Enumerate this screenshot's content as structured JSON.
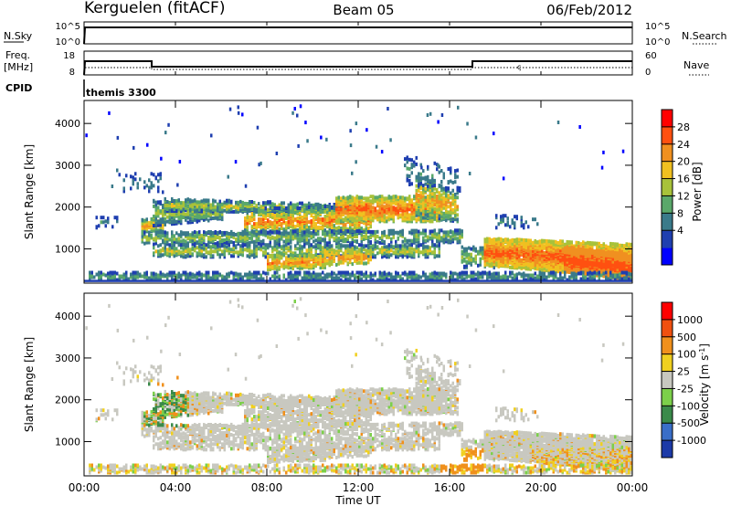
{
  "header": {
    "station": "Kerguelen (fitACF)",
    "beam": "Beam 05",
    "date": "06/Feb/2012"
  },
  "top_panels": {
    "nsky_label": "N.Sky",
    "nsky_ticks": [
      "10^5",
      "10^0"
    ],
    "nsearch_label": "N.Search",
    "nsearch_ticks": [
      "10^5",
      "10^0"
    ],
    "freq_label": "Freq.",
    "freq_unit": "[MHz]",
    "freq_ticks": [
      "18",
      "8"
    ],
    "nave_label": "Nave",
    "nave_ticks": [
      "60",
      "0"
    ],
    "cpid_label": "CPID",
    "cpid_value": "themis 3300"
  },
  "chart_data": [
    {
      "type": "heatmap",
      "name": "power",
      "ylabel": "Slant Range [km]",
      "yticks": [
        "4000",
        "3000",
        "2000",
        "1000"
      ],
      "ylim": [
        180,
        4550
      ],
      "colorbar_label": "Power [dB]",
      "colorbar_ticks": [
        "28",
        "24",
        "20",
        "16",
        "12",
        "8",
        "4"
      ],
      "colors": [
        "#0000ff",
        "#1f3fb0",
        "#3a7a8a",
        "#5aa86a",
        "#a8c23a",
        "#f0c020",
        "#f09020",
        "#ff5010",
        "#ff0000"
      ]
    },
    {
      "type": "heatmap",
      "name": "velocity",
      "ylabel": "Slant Range [km]",
      "yticks": [
        "4000",
        "3000",
        "2000",
        "1000"
      ],
      "ylim": [
        180,
        4550
      ],
      "colorbar_label": "Velocity [m s^-1]",
      "colorbar_ticks": [
        "1000",
        "500",
        "100",
        "25",
        "-25",
        "-100",
        "-500",
        "-1000"
      ],
      "colors": [
        "#1c3aa8",
        "#3a6ec8",
        "#3a8a4a",
        "#7cd04a",
        "#c8c8c0",
        "#f0d020",
        "#f0901c",
        "#f05010",
        "#ff0000"
      ]
    }
  ],
  "xaxis": {
    "xlabel": "Time UT",
    "xticks": [
      "00:00",
      "04:00",
      "08:00",
      "12:00",
      "16:00",
      "20:00",
      "00:00"
    ]
  }
}
